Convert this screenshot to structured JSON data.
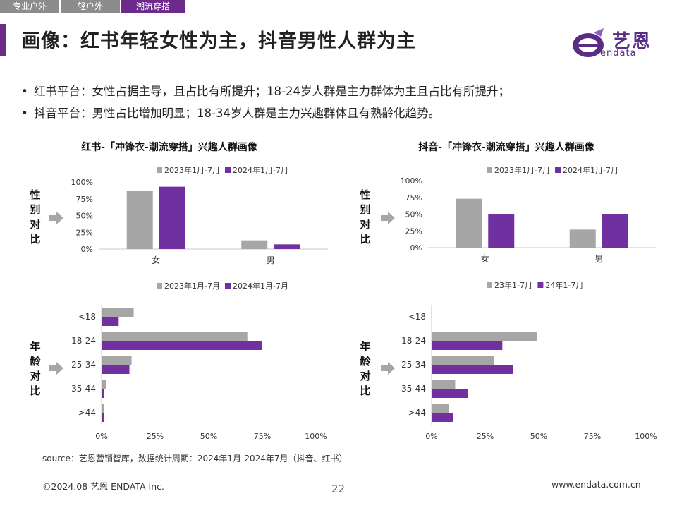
{
  "tabs": [
    "专业户外",
    "轻户外",
    "潮流穿搭"
  ],
  "page_title": "画像：红书年轻女性为主，抖音男性人群为主",
  "logo": {
    "name": "艺恩",
    "sub": "endata"
  },
  "bullets": [
    "红书平台：女性占据主导，且占比有所提升；18-24岁人群是主力群体为主且占比有所提升；",
    "抖音平台：男性占比增加明显；18-34岁人群是主力兴趣群体且有熟龄化趋势。"
  ],
  "side_labels": {
    "gender": [
      "性",
      "别",
      "对",
      "比"
    ],
    "age": [
      "年",
      "龄",
      "对",
      "比"
    ]
  },
  "source": "source：艺恩营销智库，数据统计周期：2024年1月-2024年7月（抖音、红书）",
  "footer": {
    "left": "©2024.08 艺恩 ENDATA Inc.",
    "page": "22",
    "right": "www.endata.com.cn"
  },
  "colors": {
    "gray": "#a6a6a6",
    "purple": "#7030a0",
    "accent": "#6b2a8c"
  },
  "chart_data": [
    {
      "panel": "left",
      "title": "红书-「冲锋衣-潮流穿搭」兴趣人群画像",
      "charts": [
        {
          "id": "xhs-gender",
          "type": "bar",
          "categories": [
            "女",
            "男"
          ],
          "series": [
            {
              "name": "2023年1月-7月",
              "values": [
                87,
                13
              ]
            },
            {
              "name": "2024年1月-7月",
              "values": [
                93,
                7
              ]
            }
          ],
          "yticks": [
            "0%",
            "25%",
            "50%",
            "75%",
            "100%"
          ],
          "ylim": [
            0,
            100
          ]
        },
        {
          "id": "xhs-age",
          "type": "bar",
          "orientation": "horizontal",
          "categories": [
            "<18",
            "18-24",
            "25-34",
            "35-44",
            ">44"
          ],
          "series": [
            {
              "name": "2023年1月-7月",
              "values": [
                15,
                68,
                14,
                2,
                1
              ]
            },
            {
              "name": "2024年1月-7月",
              "values": [
                8,
                75,
                13,
                1,
                1
              ]
            }
          ],
          "xticks": [
            "0%",
            "25%",
            "50%",
            "75%",
            "100%"
          ],
          "xlim": [
            0,
            100
          ]
        }
      ]
    },
    {
      "panel": "right",
      "title": "抖音-「冲锋衣-潮流穿搭」兴趣人群画像",
      "charts": [
        {
          "id": "dy-gender",
          "type": "bar",
          "categories": [
            "女",
            "男"
          ],
          "series": [
            {
              "name": "2023年1月-7月",
              "values": [
                73,
                27
              ]
            },
            {
              "name": "2024年1月-7月",
              "values": [
                50,
                50
              ]
            }
          ],
          "yticks": [
            "0%",
            "25%",
            "50%",
            "75%",
            "100%"
          ],
          "ylim": [
            0,
            100
          ]
        },
        {
          "id": "dy-age",
          "type": "bar",
          "orientation": "horizontal",
          "categories": [
            "<18",
            "18-24",
            "25-34",
            "35-44",
            ">44"
          ],
          "series": [
            {
              "name": "23年1-7月",
              "values": [
                0,
                49,
                29,
                11,
                8
              ]
            },
            {
              "name": "24年1-7月",
              "values": [
                0,
                33,
                38,
                17,
                10
              ]
            }
          ],
          "xticks": [
            "0%",
            "25%",
            "50%",
            "75%",
            "100%"
          ],
          "xlim": [
            0,
            100
          ]
        }
      ]
    }
  ]
}
